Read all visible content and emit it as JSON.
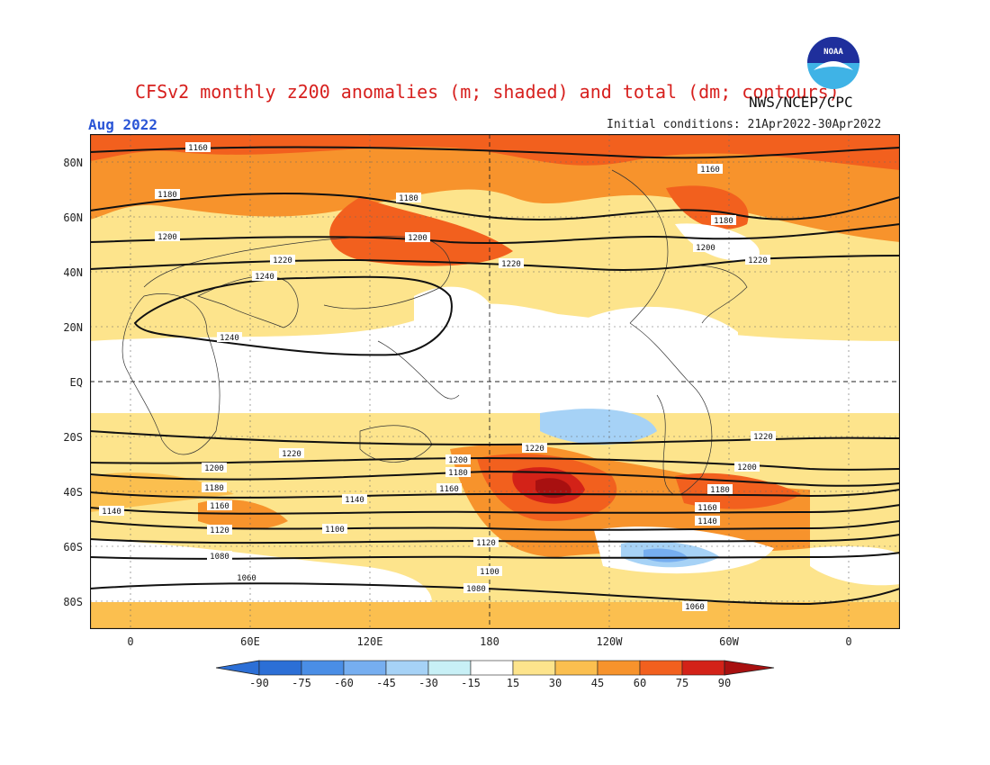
{
  "title": "CFSv2 monthly z200 anomalies (m; shaded) and total (dm; contours)",
  "agency": "NWS/NCEP/CPC",
  "valid_month": "Aug 2022",
  "initial_conditions": "Initial conditions: 21Apr2022-30Apr2022",
  "logo_text": "NOAA",
  "colors": {
    "title": "#d7201e",
    "date": "#2a55d6",
    "ocean": "#ffffff",
    "levels": [
      "#2c6fd6",
      "#4a8ee6",
      "#76aef0",
      "#a6d2f6",
      "#c8f0f6",
      "#ffffff",
      "#fde48c",
      "#fbbf4f",
      "#f7932c",
      "#f2601e",
      "#d32218",
      "#a81010"
    ]
  },
  "axes": {
    "lat_labels": [
      "80N",
      "60N",
      "40N",
      "20N",
      "EQ",
      "20S",
      "40S",
      "60S",
      "80S"
    ],
    "lon_labels": [
      "0",
      "60E",
      "120E",
      "180",
      "120W",
      "60W",
      "0"
    ]
  },
  "colorbar": {
    "labels": [
      "-90",
      "-75",
      "-60",
      "-45",
      "-30",
      "-15",
      "15",
      "30",
      "45",
      "60",
      "75",
      "90"
    ]
  },
  "contour_labels": [
    "1160",
    "1180",
    "1200",
    "1220",
    "1240",
    "1240",
    "1160",
    "1180",
    "1200",
    "1220",
    "1180",
    "1200",
    "1220",
    "1160",
    "1180",
    "1200",
    "1220",
    "1220",
    "1200",
    "1180",
    "1160",
    "1140",
    "1120",
    "1100",
    "1080",
    "1060",
    "1220",
    "1200",
    "1180",
    "1160",
    "1140",
    "1120",
    "1100",
    "1080",
    "1060",
    "1140",
    "1160",
    "1180",
    "1200",
    "1220"
  ]
}
